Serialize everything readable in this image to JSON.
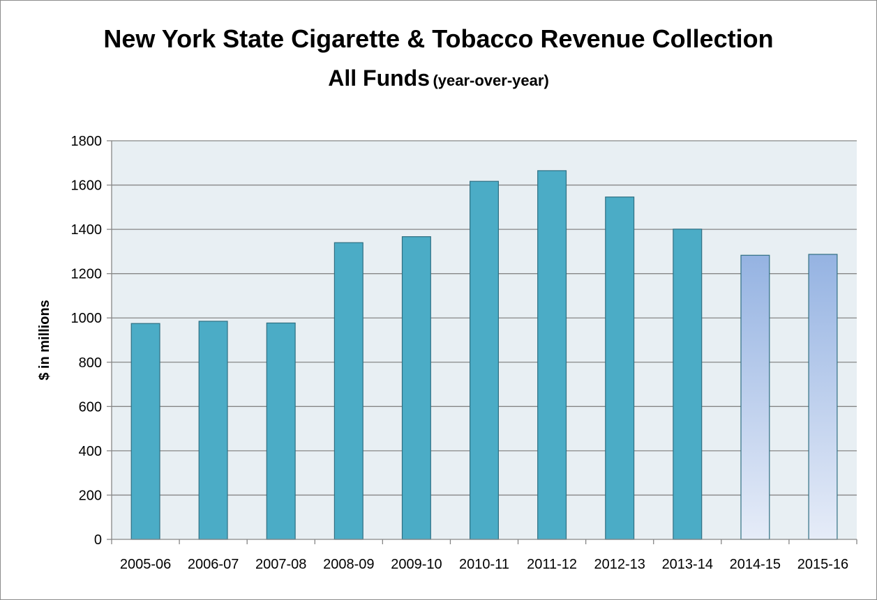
{
  "chart_data": {
    "type": "bar",
    "title": "New York State Cigarette & Tobacco Revenue Collection",
    "subtitle": "All Funds",
    "subtitle_note": "(year-over-year)",
    "xlabel": "",
    "ylabel": "$ in millions",
    "ylim": [
      0,
      1800
    ],
    "yticks": [
      0,
      200,
      400,
      600,
      800,
      1000,
      1200,
      1400,
      1600,
      1800
    ],
    "grid": true,
    "legend": "none",
    "categories": [
      "2005-06",
      "2006-07",
      "2007-08",
      "2008-09",
      "2009-10",
      "2010-11",
      "2011-12",
      "2012-13",
      "2013-14",
      "2014-15",
      "2015-16"
    ],
    "values": [
      975,
      985,
      977,
      1340,
      1367,
      1617,
      1665,
      1546,
      1401,
      1283,
      1287
    ],
    "projected_from_index": 9,
    "colors": {
      "bar": "#4bacc6",
      "bar_border": "#2f6f82",
      "projected_top": "#95b3e2",
      "projected_bottom": "#e6ecf8",
      "plot_background": "#e8eff3",
      "gridline": "#868686",
      "axis": "#868686"
    }
  }
}
